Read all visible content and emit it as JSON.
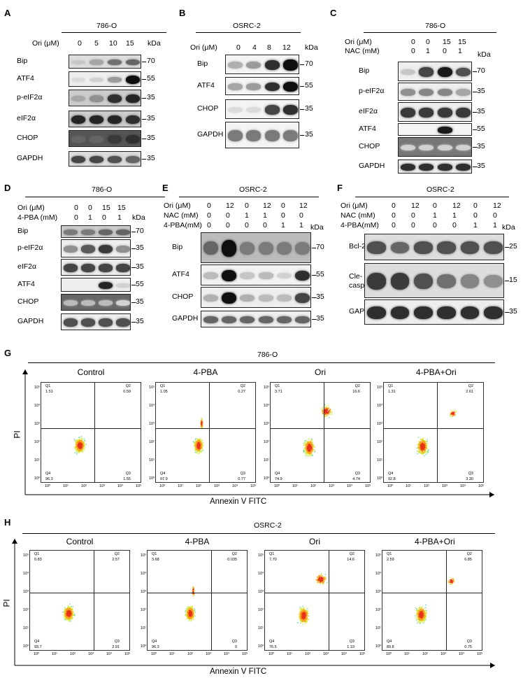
{
  "panels": {
    "A": {
      "letter": "A",
      "title": "786-O",
      "cond_label": "Ori (μM)",
      "cond_values": [
        "0",
        "5",
        "10",
        "15"
      ],
      "unit": "kDa",
      "rows": [
        {
          "name": "Bip",
          "kda": "70"
        },
        {
          "name": "ATF4",
          "kda": "55"
        },
        {
          "name": "p-eIF2α",
          "kda": "35"
        },
        {
          "name": "eIF2α",
          "kda": "35"
        },
        {
          "name": "CHOP",
          "kda": "35"
        },
        {
          "name": "GAPDH",
          "kda": "35"
        }
      ]
    },
    "B": {
      "letter": "B",
      "title": "OSRC-2",
      "cond_label": "Ori (μM)",
      "cond_values": [
        "0",
        "4",
        "8",
        "12"
      ],
      "unit": "kDa",
      "rows": [
        {
          "name": "Bip",
          "kda": "70"
        },
        {
          "name": "ATF4",
          "kda": "55"
        },
        {
          "name": "CHOP",
          "kda": "35"
        },
        {
          "name": "GAPDH",
          "kda": "35"
        }
      ]
    },
    "C": {
      "letter": "C",
      "title": "786-O",
      "cond_label1": "Ori (μM)",
      "cond_values1": [
        "0",
        "0",
        "15",
        "15"
      ],
      "cond_label2": "NAC (mM)",
      "cond_values2": [
        "0",
        "1",
        "0",
        "1"
      ],
      "unit": "kDa",
      "rows": [
        {
          "name": "Bip",
          "kda": "70"
        },
        {
          "name": "p-eIF2α",
          "kda": "35"
        },
        {
          "name": "eIF2α",
          "kda": "35"
        },
        {
          "name": "ATF4",
          "kda": "55"
        },
        {
          "name": "CHOP",
          "kda": "35"
        },
        {
          "name": "GAPDH",
          "kda": "35"
        }
      ]
    },
    "D": {
      "letter": "D",
      "title": "786-O",
      "cond_label1": "Ori (μM)",
      "cond_values1": [
        "0",
        "0",
        "15",
        "15"
      ],
      "cond_label2": "4-PBA (mM)",
      "cond_values2": [
        "0",
        "1",
        "0",
        "1"
      ],
      "unit": "kDa",
      "rows": [
        {
          "name": "Bip",
          "kda": "70"
        },
        {
          "name": "p-eIF2α",
          "kda": "35"
        },
        {
          "name": "eIF2α",
          "kda": "35"
        },
        {
          "name": "ATF4",
          "kda": "55"
        },
        {
          "name": "CHOP",
          "kda": "35"
        },
        {
          "name": "GAPDH",
          "kda": "35"
        }
      ]
    },
    "E": {
      "letter": "E",
      "title": "OSRC-2",
      "cond_label1": "Ori (μM)",
      "cond_values1": [
        "0",
        "12",
        "0",
        "12",
        "0",
        "12"
      ],
      "cond_label2": "NAC (mM)",
      "cond_values2": [
        "0",
        "0",
        "1",
        "1",
        "0",
        "0"
      ],
      "cond_label3": "4-PBA(mM)",
      "cond_values3": [
        "0",
        "0",
        "0",
        "0",
        "1",
        "1"
      ],
      "unit": "kDa",
      "rows": [
        {
          "name": "Bip",
          "kda": "70"
        },
        {
          "name": "ATF4",
          "kda": "55"
        },
        {
          "name": "CHOP",
          "kda": "35"
        },
        {
          "name": "GAPDH",
          "kda": "35"
        }
      ]
    },
    "F": {
      "letter": "F",
      "title": "OSRC-2",
      "cond_label1": "Ori (μM)",
      "cond_values1": [
        "0",
        "12",
        "0",
        "12",
        "0",
        "12"
      ],
      "cond_label2": "NAC (mM)",
      "cond_values2": [
        "0",
        "0",
        "1",
        "1",
        "0",
        "0"
      ],
      "cond_label3": "4-PBA(mM)",
      "cond_values3": [
        "0",
        "0",
        "0",
        "0",
        "1",
        "1"
      ],
      "unit": "kDa",
      "rows": [
        {
          "name": "Bcl-2",
          "kda": "25"
        },
        {
          "name": "Cle-\ncaspase3",
          "kda": "15"
        },
        {
          "name": "GAPDH",
          "kda": "35"
        }
      ]
    },
    "G": {
      "letter": "G",
      "title": "786-O",
      "ylabel": "PI",
      "xlabel": "Annexin V FITC",
      "plots": [
        {
          "title": "Control",
          "q1": "1.51",
          "q2": "0.59",
          "q3": "1.55",
          "q4": "96.3"
        },
        {
          "title": "4-PBA",
          "q1": "1.05",
          "q2": "0.27",
          "q3": "0.77",
          "q4": "97.9"
        },
        {
          "title": "Ori",
          "q1": "3.71",
          "q2": "16.6",
          "q3": "4.74",
          "q4": "74.9"
        },
        {
          "title": "4-PBA+Ori",
          "q1": "1.31",
          "q2": "2.61",
          "q3": "3.30",
          "q4": "92.8"
        }
      ]
    },
    "H": {
      "letter": "H",
      "title": "OSRC-2",
      "ylabel": "PI",
      "xlabel": "Annexin V FITC",
      "plots": [
        {
          "title": "Control",
          "q1": "0.83",
          "q2": "2.57",
          "q3": "2.91",
          "q4": "93.7"
        },
        {
          "title": "4-PBA",
          "q1": "3.68",
          "q2": "0.035",
          "q3": "0",
          "q4": "96.3"
        },
        {
          "title": "Ori",
          "q1": "7.70",
          "q2": "14.6",
          "q3": "1.19",
          "q4": "76.5"
        },
        {
          "title": "4-PBA+Ori",
          "q1": "2.59",
          "q2": "6.85",
          "q3": "0.75",
          "q4": "89.8"
        }
      ]
    }
  },
  "quadrant_labels": {
    "q1": "Q1",
    "q2": "Q2",
    "q3": "Q3",
    "q4": "Q4"
  },
  "ytick_labels": [
    "10⁰",
    "10¹",
    "10²",
    "10³",
    "10⁴",
    "10⁵"
  ],
  "xtick_labels": [
    "10⁰",
    "10¹",
    "10²",
    "10³",
    "10⁴",
    "10⁵"
  ]
}
